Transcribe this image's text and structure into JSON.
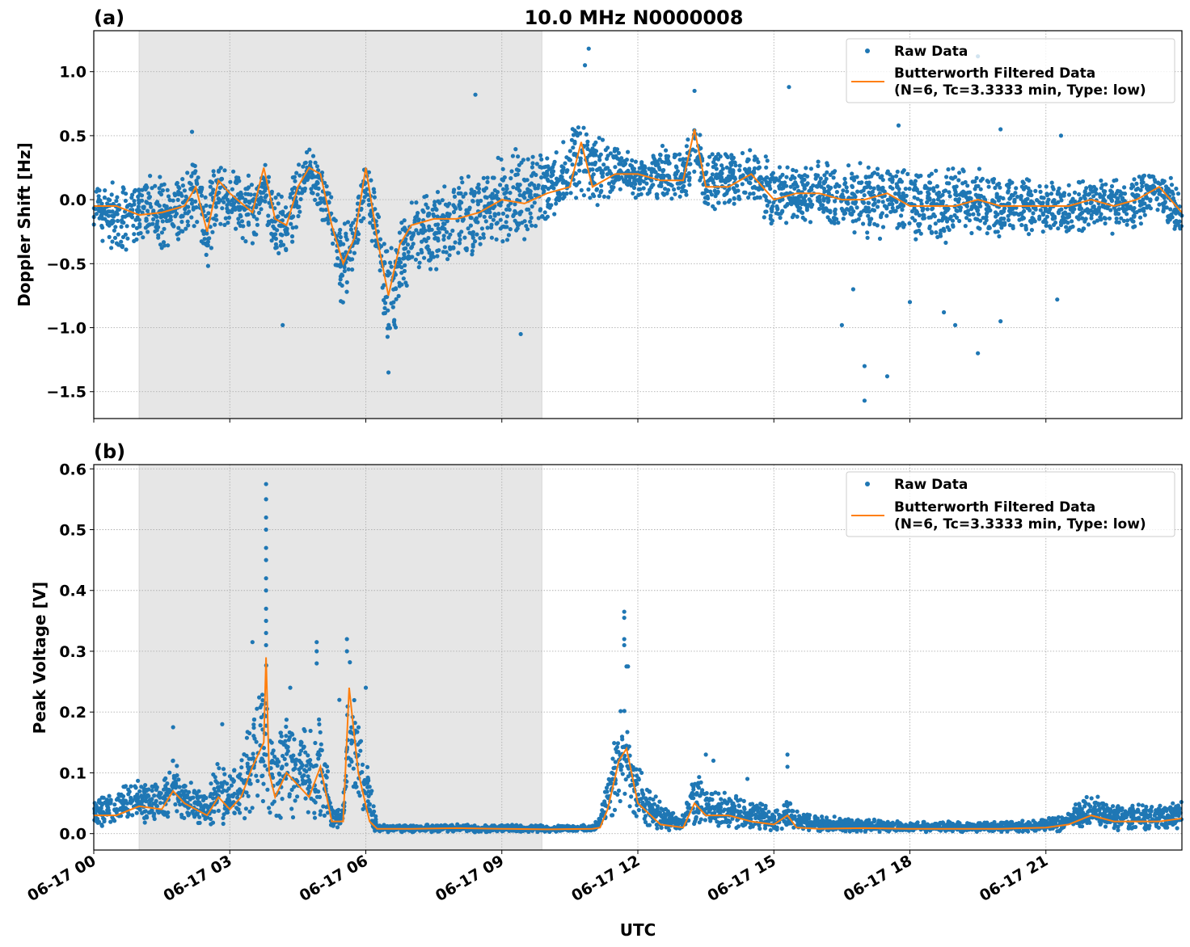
{
  "chart_data": [
    {
      "type": "scatter+line",
      "panel_label": "(a)",
      "title": "10.0 MHz N0000008",
      "xlabel": "",
      "ylabel": "Doppler Shift [Hz]",
      "xlim": [
        "06-17 00:00",
        "06-18 00:00"
      ],
      "ylim": [
        -1.71,
        1.32
      ],
      "yticks": [
        "−1.5",
        "−1.0",
        "−0.5",
        "0.0",
        "0.5",
        "1.0"
      ],
      "ytick_values": [
        -1.5,
        -1.0,
        -0.5,
        0.0,
        0.5,
        1.0
      ],
      "grid": true,
      "shaded_span": [
        "06-17 01:00",
        "06-17 09:53"
      ],
      "legend": {
        "placement": "top-right",
        "raw": "Raw Data",
        "filtered_line1": "Butterworth Filtered Data",
        "filtered_line2": "(N=6, Tc=3.3333 min, Type: low)"
      },
      "colors": {
        "raw": "#1f77b4",
        "filtered": "#ff7f0e",
        "shade": "#e6e6e6"
      },
      "series_columns": [
        "time",
        "filtered",
        "raw_low",
        "raw_high"
      ],
      "series": [
        [
          "06-17 00:00",
          -0.05,
          -0.35,
          0.2
        ],
        [
          "06-17 00:30",
          -0.05,
          -0.45,
          0.2
        ],
        [
          "06-17 01:00",
          -0.12,
          -0.4,
          0.2
        ],
        [
          "06-17 01:30",
          -0.1,
          -0.4,
          0.2
        ],
        [
          "06-17 02:00",
          -0.05,
          -0.35,
          0.25
        ],
        [
          "06-17 02:15",
          0.1,
          -0.2,
          0.35
        ],
        [
          "06-17 02:30",
          -0.25,
          -0.6,
          0.2
        ],
        [
          "06-17 02:45",
          0.15,
          -0.2,
          0.35
        ],
        [
          "06-17 03:00",
          0.05,
          -0.3,
          0.3
        ],
        [
          "06-17 03:30",
          -0.1,
          -0.4,
          0.2
        ],
        [
          "06-17 03:45",
          0.25,
          -0.1,
          0.35
        ],
        [
          "06-17 04:00",
          -0.15,
          -0.5,
          0.1
        ],
        [
          "06-17 04:15",
          -0.2,
          -0.5,
          0.1
        ],
        [
          "06-17 04:30",
          0.1,
          -0.2,
          0.3
        ],
        [
          "06-17 04:45",
          0.25,
          0.0,
          0.45
        ],
        [
          "06-17 05:00",
          0.2,
          -0.1,
          0.3
        ],
        [
          "06-17 05:15",
          -0.2,
          -0.5,
          0.05
        ],
        [
          "06-17 05:30",
          -0.5,
          -0.9,
          -0.2
        ],
        [
          "06-17 05:45",
          -0.3,
          -0.6,
          0.0
        ],
        [
          "06-17 06:00",
          0.25,
          -0.1,
          0.35
        ],
        [
          "06-17 06:15",
          -0.3,
          -0.6,
          0.0
        ],
        [
          "06-17 06:30",
          -0.75,
          -1.3,
          -0.4
        ],
        [
          "06-17 06:45",
          -0.35,
          -0.9,
          -0.1
        ],
        [
          "06-17 07:00",
          -0.2,
          -0.6,
          0.05
        ],
        [
          "06-17 07:30",
          -0.15,
          -0.6,
          0.1
        ],
        [
          "06-17 08:00",
          -0.15,
          -0.5,
          0.2
        ],
        [
          "06-17 08:30",
          -0.1,
          -0.45,
          0.25
        ],
        [
          "06-17 09:00",
          0.0,
          -0.4,
          0.4
        ],
        [
          "06-17 09:30",
          -0.03,
          -0.35,
          0.45
        ],
        [
          "06-17 10:00",
          0.05,
          -0.2,
          0.4
        ],
        [
          "06-17 10:30",
          0.1,
          -0.1,
          0.55
        ],
        [
          "06-17 10:45",
          0.45,
          0.0,
          0.75
        ],
        [
          "06-17 11:00",
          0.1,
          -0.15,
          0.6
        ],
        [
          "06-17 11:30",
          0.2,
          0.0,
          0.45
        ],
        [
          "06-17 12:00",
          0.2,
          0.0,
          0.35
        ],
        [
          "06-17 12:30",
          0.15,
          -0.05,
          0.45
        ],
        [
          "06-17 13:00",
          0.15,
          -0.05,
          0.4
        ],
        [
          "06-17 13:15",
          0.55,
          0.1,
          0.75
        ],
        [
          "06-17 13:30",
          0.1,
          -0.1,
          0.35
        ],
        [
          "06-17 14:00",
          0.1,
          -0.1,
          0.4
        ],
        [
          "06-17 14:30",
          0.2,
          0.0,
          0.45
        ],
        [
          "06-17 15:00",
          0.0,
          -0.25,
          0.3
        ],
        [
          "06-17 15:30",
          0.05,
          -0.2,
          0.3
        ],
        [
          "06-17 16:00",
          0.05,
          -0.2,
          0.35
        ],
        [
          "06-17 16:30",
          0.0,
          -0.3,
          0.3
        ],
        [
          "06-17 17:00",
          0.0,
          -0.35,
          0.3
        ],
        [
          "06-17 17:30",
          0.05,
          -0.3,
          0.35
        ],
        [
          "06-17 18:00",
          -0.05,
          -0.35,
          0.25
        ],
        [
          "06-17 18:30",
          -0.05,
          -0.35,
          0.25
        ],
        [
          "06-17 19:00",
          -0.05,
          -0.35,
          0.3
        ],
        [
          "06-17 19:30",
          0.0,
          -0.3,
          0.25
        ],
        [
          "06-17 20:00",
          -0.05,
          -0.3,
          0.2
        ],
        [
          "06-17 20:30",
          -0.05,
          -0.3,
          0.2
        ],
        [
          "06-17 21:00",
          -0.05,
          -0.3,
          0.15
        ],
        [
          "06-17 21:30",
          -0.05,
          -0.3,
          0.15
        ],
        [
          "06-17 22:00",
          0.0,
          -0.25,
          0.2
        ],
        [
          "06-17 22:30",
          -0.05,
          -0.3,
          0.2
        ],
        [
          "06-17 23:00",
          0.0,
          -0.25,
          0.2
        ],
        [
          "06-17 23:30",
          0.1,
          -0.15,
          0.3
        ],
        [
          "06-18 00:00",
          -0.1,
          -0.35,
          0.15
        ]
      ],
      "raw_outliers": [
        [
          "06-17 10:55",
          1.18
        ],
        [
          "06-17 10:50",
          1.05
        ],
        [
          "06-17 08:25",
          0.82
        ],
        [
          "06-17 13:15",
          0.85
        ],
        [
          "06-17 17:00",
          -1.57
        ],
        [
          "06-17 17:00",
          -1.3
        ],
        [
          "06-17 17:30",
          -1.38
        ],
        [
          "06-17 19:30",
          -1.2
        ],
        [
          "06-17 19:30",
          1.12
        ],
        [
          "06-17 16:30",
          -0.98
        ],
        [
          "06-17 15:20",
          0.88
        ],
        [
          "06-17 06:30",
          -1.35
        ],
        [
          "06-17 04:10",
          -0.98
        ],
        [
          "06-17 09:25",
          -1.05
        ],
        [
          "06-17 19:00",
          -0.98
        ],
        [
          "06-17 20:00",
          -0.95
        ],
        [
          "06-17 21:15",
          -0.78
        ],
        [
          "06-17 18:45",
          -0.88
        ],
        [
          "06-17 18:00",
          -0.8
        ],
        [
          "06-17 16:45",
          -0.7
        ],
        [
          "06-17 17:45",
          0.58
        ],
        [
          "06-17 21:20",
          0.5
        ],
        [
          "06-17 20:00",
          0.55
        ],
        [
          "06-17 02:10",
          0.53
        ]
      ]
    },
    {
      "type": "scatter+line",
      "panel_label": "(b)",
      "xlabel": "UTC",
      "ylabel": "Peak Voltage [V]",
      "xlim": [
        "06-17 00:00",
        "06-18 00:00"
      ],
      "ylim": [
        -0.027,
        0.607
      ],
      "yticks": [
        "0.0",
        "0.1",
        "0.2",
        "0.3",
        "0.4",
        "0.5",
        "0.6"
      ],
      "ytick_values": [
        0,
        0.1,
        0.2,
        0.3,
        0.4,
        0.5,
        0.6
      ],
      "xticks": [
        "06-17 00",
        "06-17 03",
        "06-17 06",
        "06-17 09",
        "06-17 12",
        "06-17 15",
        "06-17 18",
        "06-17 21"
      ],
      "grid": true,
      "shaded_span": [
        "06-17 01:00",
        "06-17 09:53"
      ],
      "legend": {
        "placement": "top-right",
        "raw": "Raw Data",
        "filtered_line1": "Butterworth Filtered Data",
        "filtered_line2": "(N=6, Tc=3.3333 min, Type: low)"
      },
      "colors": {
        "raw": "#1f77b4",
        "filtered": "#ff7f0e",
        "shade": "#e6e6e6"
      },
      "series_columns": [
        "time",
        "filtered",
        "raw_low",
        "raw_high"
      ],
      "series": [
        [
          "06-17 00:00",
          0.03,
          0.008,
          0.06
        ],
        [
          "06-17 00:30",
          0.03,
          0.01,
          0.075
        ],
        [
          "06-17 01:00",
          0.045,
          0.015,
          0.095
        ],
        [
          "06-17 01:30",
          0.04,
          0.012,
          0.09
        ],
        [
          "06-17 01:45",
          0.07,
          0.02,
          0.13
        ],
        [
          "06-17 02:00",
          0.05,
          0.015,
          0.1
        ],
        [
          "06-17 02:30",
          0.03,
          0.008,
          0.07
        ],
        [
          "06-17 02:45",
          0.06,
          0.015,
          0.14
        ],
        [
          "06-17 03:00",
          0.04,
          0.01,
          0.1
        ],
        [
          "06-17 03:15",
          0.06,
          0.015,
          0.15
        ],
        [
          "06-17 03:30",
          0.11,
          0.03,
          0.22
        ],
        [
          "06-17 03:45",
          0.15,
          0.03,
          0.28
        ],
        [
          "06-17 03:48",
          0.29,
          0.05,
          0.3
        ],
        [
          "06-17 03:52",
          0.1,
          0.02,
          0.2
        ],
        [
          "06-17 04:00",
          0.06,
          0.01,
          0.16
        ],
        [
          "06-17 04:15",
          0.1,
          0.02,
          0.24
        ],
        [
          "06-17 04:30",
          0.08,
          0.02,
          0.2
        ],
        [
          "06-17 04:45",
          0.06,
          0.015,
          0.18
        ],
        [
          "06-17 05:00",
          0.11,
          0.02,
          0.22
        ],
        [
          "06-17 05:15",
          0.02,
          0.008,
          0.04
        ],
        [
          "06-17 05:30",
          0.02,
          0.008,
          0.05
        ],
        [
          "06-17 05:38",
          0.24,
          0.05,
          0.32
        ],
        [
          "06-17 05:50",
          0.1,
          0.03,
          0.2
        ],
        [
          "06-17 06:05",
          0.02,
          0.008,
          0.1
        ],
        [
          "06-17 06:15",
          0.008,
          0.002,
          0.015
        ],
        [
          "06-17 07:00",
          0.008,
          0.002,
          0.015
        ],
        [
          "06-17 08:00",
          0.009,
          0.002,
          0.016
        ],
        [
          "06-17 09:00",
          0.008,
          0.002,
          0.015
        ],
        [
          "06-17 10:00",
          0.007,
          0.002,
          0.014
        ],
        [
          "06-17 11:00",
          0.008,
          0.002,
          0.016
        ],
        [
          "06-17 11:10",
          0.01,
          0.002,
          0.03
        ],
        [
          "06-17 11:20",
          0.04,
          0.01,
          0.1
        ],
        [
          "06-17 11:35",
          0.12,
          0.03,
          0.23
        ],
        [
          "06-17 11:45",
          0.14,
          0.03,
          0.22
        ],
        [
          "06-17 12:00",
          0.05,
          0.01,
          0.12
        ],
        [
          "06-17 12:30",
          0.015,
          0.004,
          0.05
        ],
        [
          "06-17 13:00",
          0.01,
          0.003,
          0.03
        ],
        [
          "06-17 13:15",
          0.05,
          0.01,
          0.12
        ],
        [
          "06-17 13:30",
          0.03,
          0.008,
          0.08
        ],
        [
          "06-17 14:00",
          0.03,
          0.005,
          0.07
        ],
        [
          "06-17 14:30",
          0.02,
          0.004,
          0.06
        ],
        [
          "06-17 15:00",
          0.015,
          0.003,
          0.04
        ],
        [
          "06-17 15:18",
          0.03,
          0.005,
          0.06
        ],
        [
          "06-17 15:30",
          0.01,
          0.002,
          0.04
        ],
        [
          "06-17 16:00",
          0.008,
          0.002,
          0.03
        ],
        [
          "06-17 17:00",
          0.009,
          0.002,
          0.025
        ],
        [
          "06-17 18:00",
          0.008,
          0.002,
          0.02
        ],
        [
          "06-17 19:00",
          0.008,
          0.002,
          0.02
        ],
        [
          "06-17 20:00",
          0.008,
          0.002,
          0.02
        ],
        [
          "06-17 21:00",
          0.01,
          0.002,
          0.025
        ],
        [
          "06-17 21:30",
          0.015,
          0.003,
          0.04
        ],
        [
          "06-17 22:00",
          0.03,
          0.006,
          0.07
        ],
        [
          "06-17 22:30",
          0.02,
          0.005,
          0.05
        ],
        [
          "06-17 23:00",
          0.02,
          0.005,
          0.05
        ],
        [
          "06-17 23:30",
          0.02,
          0.005,
          0.05
        ],
        [
          "06-18 00:00",
          0.025,
          0.005,
          0.06
        ]
      ],
      "raw_outliers": [
        [
          "06-17 03:48",
          0.575
        ],
        [
          "06-17 03:48",
          0.55
        ],
        [
          "06-17 03:48",
          0.52
        ],
        [
          "06-17 03:48",
          0.5
        ],
        [
          "06-17 03:48",
          0.47
        ],
        [
          "06-17 03:48",
          0.45
        ],
        [
          "06-17 03:48",
          0.42
        ],
        [
          "06-17 03:48",
          0.4
        ],
        [
          "06-17 03:48",
          0.37
        ],
        [
          "06-17 03:48",
          0.35
        ],
        [
          "06-17 03:48",
          0.33
        ],
        [
          "06-17 03:48",
          0.31
        ],
        [
          "06-17 11:42",
          0.365
        ],
        [
          "06-17 11:42",
          0.355
        ],
        [
          "06-17 11:42",
          0.32
        ],
        [
          "06-17 11:42",
          0.31
        ],
        [
          "06-17 11:45",
          0.275
        ],
        [
          "06-17 11:47",
          0.275
        ],
        [
          "06-17 05:35",
          0.32
        ],
        [
          "06-17 05:35",
          0.3
        ],
        [
          "06-17 04:55",
          0.315
        ],
        [
          "06-17 04:55",
          0.3
        ],
        [
          "06-17 04:55",
          0.28
        ],
        [
          "06-17 03:30",
          0.315
        ],
        [
          "06-17 04:20",
          0.24
        ],
        [
          "06-17 06:00",
          0.24
        ],
        [
          "06-17 05:25",
          0.22
        ],
        [
          "06-17 15:18",
          0.13
        ],
        [
          "06-17 15:18",
          0.11
        ],
        [
          "06-17 13:30",
          0.13
        ],
        [
          "06-17 13:40",
          0.12
        ],
        [
          "06-17 01:45",
          0.175
        ],
        [
          "06-17 02:50",
          0.18
        ],
        [
          "06-17 12:05",
          0.1
        ],
        [
          "06-17 14:25",
          0.09
        ]
      ]
    }
  ]
}
